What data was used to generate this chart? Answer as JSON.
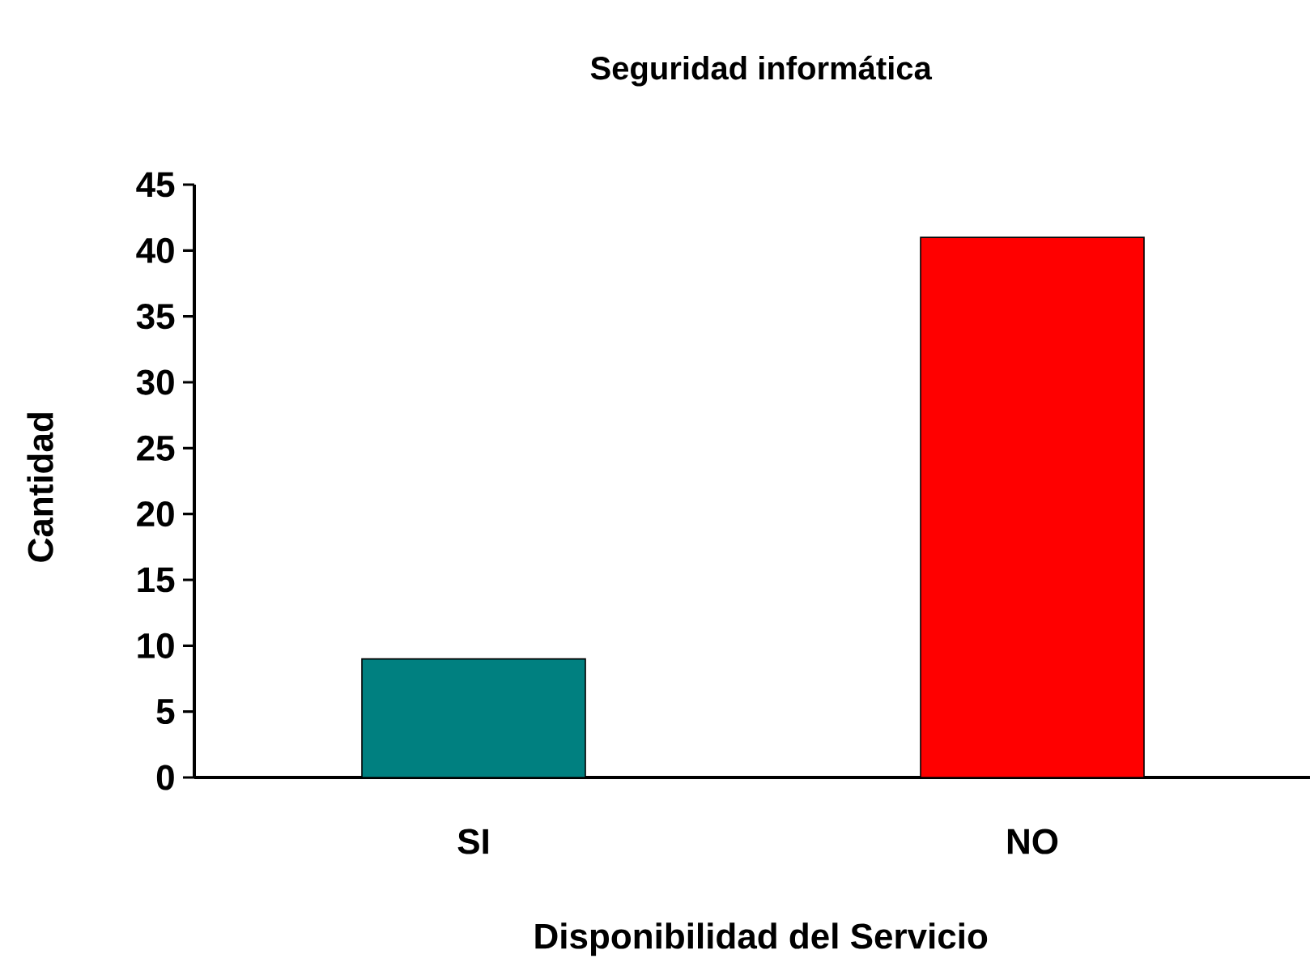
{
  "chart_data": {
    "type": "bar",
    "title": "Seguridad informática",
    "xlabel": "Disponibilidad del Servicio",
    "ylabel": "Cantidad",
    "categories": [
      "SI",
      "NO"
    ],
    "values": [
      9,
      41
    ],
    "colors": [
      "#008080",
      "#ff0000"
    ],
    "ylim": [
      0,
      45
    ],
    "yticks": [
      0,
      5,
      10,
      15,
      20,
      25,
      30,
      35,
      40,
      45
    ],
    "grid": false
  }
}
